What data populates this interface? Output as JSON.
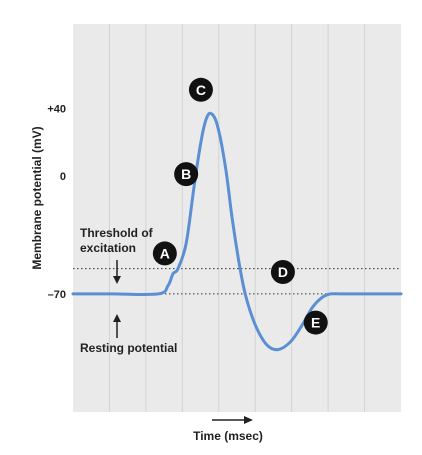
{
  "chart_data": {
    "type": "line",
    "title": "",
    "xlabel": "Time (msec)",
    "ylabel": "Membrane potential (mV)",
    "ylim": [
      -140,
      90
    ],
    "xlim": [
      0,
      10
    ],
    "grid": true,
    "legend": "none",
    "y_ticks": [
      {
        "value": 40,
        "label": "+40"
      },
      {
        "value": 0,
        "label": "0"
      },
      {
        "value": -70,
        "label": "–70"
      }
    ],
    "reference_lines": [
      {
        "name": "threshold",
        "value": -55
      },
      {
        "name": "resting",
        "value": -70
      }
    ],
    "series": [
      {
        "color": "#5b8fd4",
        "x": [
          0,
          1.2,
          2.6,
          2.9,
          3.05,
          3.2,
          3.45,
          3.7,
          3.9,
          4.05,
          4.2,
          4.4,
          4.65,
          4.85,
          5.05,
          5.25,
          5.55,
          5.9,
          6.25,
          6.65,
          7.0,
          7.3,
          7.6,
          7.85,
          8.2,
          9.0,
          10.0
        ],
        "y": [
          -70,
          -70,
          -70,
          -65,
          -58,
          -55,
          -40,
          -5,
          20,
          33,
          37,
          30,
          5,
          -25,
          -50,
          -70,
          -88,
          -100,
          -103,
          -98,
          -88,
          -78,
          -72,
          -70,
          -70,
          -70,
          -70
        ]
      }
    ],
    "annotations": [
      {
        "text": "Threshold of",
        "line2": "excitation",
        "arrow": "down"
      },
      {
        "text": "Resting potential",
        "arrow": "up"
      }
    ],
    "markers": [
      {
        "letter": "A",
        "x": 2.8,
        "y": -46
      },
      {
        "letter": "B",
        "x": 3.45,
        "y": 1
      },
      {
        "letter": "C",
        "x": 3.9,
        "y": 51
      },
      {
        "letter": "D",
        "x": 6.4,
        "y": -57
      },
      {
        "letter": "E",
        "x": 7.4,
        "y": -87
      }
    ],
    "axis_arrow": "right"
  }
}
